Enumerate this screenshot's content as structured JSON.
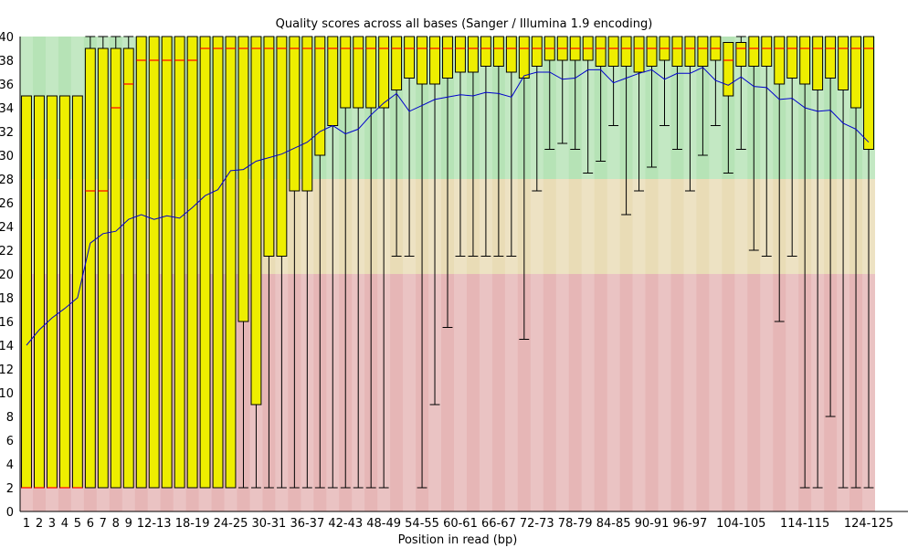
{
  "chart_data": {
    "type": "box",
    "title": "Quality scores across all bases (Sanger / Illumina 1.9 encoding)",
    "xlabel": "Position in read (bp)",
    "ylabel": "",
    "ylim": [
      0,
      40
    ],
    "y_ticks": [
      0,
      2,
      4,
      6,
      8,
      10,
      12,
      14,
      16,
      18,
      20,
      22,
      24,
      26,
      28,
      30,
      32,
      34,
      36,
      38,
      40
    ],
    "quality_bands": [
      {
        "from": 28,
        "to": 40,
        "color": "#b6e3b6"
      },
      {
        "from": 20,
        "to": 28,
        "color": "#e9dcb6"
      },
      {
        "from": 0,
        "to": 20,
        "color": "#e6b6b6"
      }
    ],
    "colors": {
      "box": "#eeee00",
      "median": "#ff0000",
      "mean": "#0000cc",
      "whisker": "#000000"
    },
    "categories": [
      "1",
      "2",
      "3",
      "4",
      "5",
      "6",
      "7",
      "8",
      "9",
      "10-11",
      "12-13",
      "14-15",
      "16-17",
      "18-19",
      "20-21",
      "22-23",
      "24-25",
      "26-27",
      "28-29",
      "30-31",
      "32-33",
      "34-35",
      "36-37",
      "38-39",
      "40-41",
      "42-43",
      "44-45",
      "46-47",
      "48-49",
      "50-51",
      "52-53",
      "54-55",
      "56-57",
      "58-59",
      "60-61",
      "62-63",
      "64-65",
      "66-67",
      "68-69",
      "70-71",
      "72-73",
      "74-75",
      "76-77",
      "78-79",
      "80-81",
      "82-83",
      "84-85",
      "86-87",
      "88-89",
      "90-91",
      "92-93",
      "94-95",
      "96-97",
      "98-99",
      "100-101",
      "102-103",
      "104-105",
      "106-107",
      "108-109",
      "110-111",
      "112-113",
      "114-115",
      "116-117",
      "118-119",
      "120-121",
      "122-123",
      "124-125"
    ],
    "x_tick_labels": [
      "1",
      "2",
      "3",
      "4",
      "5",
      "6",
      "7",
      "8",
      "9",
      "12-13",
      "18-19",
      "24-25",
      "30-31",
      "36-37",
      "42-43",
      "48-49",
      "54-55",
      "60-61",
      "66-67",
      "72-73",
      "78-79",
      "84-85",
      "90-91",
      "96-97",
      "104-105",
      "114-115",
      "124-125"
    ],
    "q1": [
      2,
      2,
      2,
      2,
      2,
      2,
      2,
      2,
      2,
      2,
      2,
      2,
      2,
      2,
      2,
      2,
      2,
      16,
      9,
      21.5,
      21.5,
      27,
      27,
      30,
      32.5,
      34,
      34,
      34,
      34,
      35.5,
      36.5,
      36,
      36,
      36.5,
      37,
      37,
      37.5,
      37.5,
      37,
      36.5,
      37.5,
      38,
      38,
      38,
      38,
      37.5,
      37.5,
      37.5,
      37,
      37.5,
      38,
      37.5,
      37.5,
      37.5,
      38,
      35,
      37.5,
      37.5,
      37.5,
      36,
      36.5,
      36,
      35.5,
      36.5,
      35.5,
      34,
      30.5
    ],
    "median": [
      2,
      2,
      2,
      2,
      2,
      27,
      27,
      34,
      36,
      38,
      38,
      38,
      38,
      38,
      39,
      39,
      39,
      39,
      39,
      39,
      39,
      39,
      39,
      39,
      39,
      39,
      39,
      39,
      39,
      39,
      39,
      39,
      39,
      39,
      39,
      39,
      39,
      39,
      39,
      39,
      39,
      39,
      39,
      39,
      39,
      39,
      39,
      39,
      39,
      39,
      39,
      39,
      39,
      39,
      39,
      38,
      39,
      39,
      39,
      39,
      39,
      39,
      39,
      39,
      39,
      39,
      39
    ],
    "q3": [
      35,
      35,
      35,
      35,
      35,
      39,
      39,
      39,
      39,
      40,
      40,
      40,
      40,
      40,
      40,
      40,
      40,
      40,
      40,
      40,
      40,
      40,
      40,
      40,
      40,
      40,
      40,
      40,
      40,
      40,
      40,
      40,
      40,
      40,
      40,
      40,
      40,
      40,
      40,
      40,
      40,
      40,
      40,
      40,
      40,
      40,
      40,
      40,
      40,
      40,
      40,
      40,
      40,
      40,
      40,
      39.5,
      39.5,
      40,
      40,
      40,
      40,
      40,
      40,
      40,
      40,
      40,
      40
    ],
    "whisker_low": [
      2,
      2,
      2,
      2,
      2,
      2,
      2,
      2,
      2,
      2,
      2,
      2,
      2,
      2,
      2,
      2,
      2,
      2,
      2,
      2,
      2,
      2,
      2,
      2,
      2,
      2,
      2,
      2,
      2,
      21.5,
      21.5,
      2,
      9,
      15.5,
      21.5,
      21.5,
      21.5,
      21.5,
      21.5,
      14.5,
      27,
      30.5,
      31,
      30.5,
      28.5,
      29.5,
      32.5,
      25,
      27,
      29,
      32.5,
      30.5,
      27,
      30,
      32.5,
      28.5,
      30.5,
      22,
      21.5,
      16,
      21.5,
      2,
      2,
      8,
      2,
      2,
      2
    ],
    "whisker_high": [
      35,
      35,
      35,
      35,
      35,
      40,
      40,
      40,
      40,
      40,
      40,
      40,
      40,
      40,
      40,
      40,
      40,
      40,
      40,
      40,
      40,
      40,
      40,
      40,
      40,
      40,
      40,
      40,
      40,
      40,
      40,
      40,
      40,
      40,
      40,
      40,
      40,
      40,
      40,
      40,
      40,
      40,
      40,
      40,
      40,
      40,
      40,
      40,
      40,
      40,
      40,
      40,
      40,
      40,
      40,
      39.5,
      40,
      40,
      40,
      40,
      40,
      40,
      40,
      40,
      40,
      40,
      40
    ],
    "mean": [
      14,
      15.3,
      16.3,
      17.1,
      18,
      22.6,
      23.4,
      23.6,
      24.6,
      25,
      24.6,
      24.9,
      24.7,
      25.6,
      26.6,
      27.1,
      28.7,
      28.8,
      29.5,
      29.8,
      30.1,
      30.6,
      31.1,
      32,
      32.5,
      31.8,
      32.2,
      33.4,
      34.4,
      35.2,
      33.7,
      34.2,
      34.7,
      34.9,
      35.1,
      35,
      35.3,
      35.2,
      34.9,
      36.7,
      37,
      37,
      36.4,
      36.5,
      37.2,
      37.2,
      36.1,
      36.5,
      36.9,
      37.2,
      36.4,
      36.9,
      36.9,
      37.4,
      36.3,
      35.9,
      36.6,
      35.8,
      35.7,
      34.7,
      34.8,
      34,
      33.7,
      33.8,
      32.7,
      32.2,
      31.1
    ]
  }
}
